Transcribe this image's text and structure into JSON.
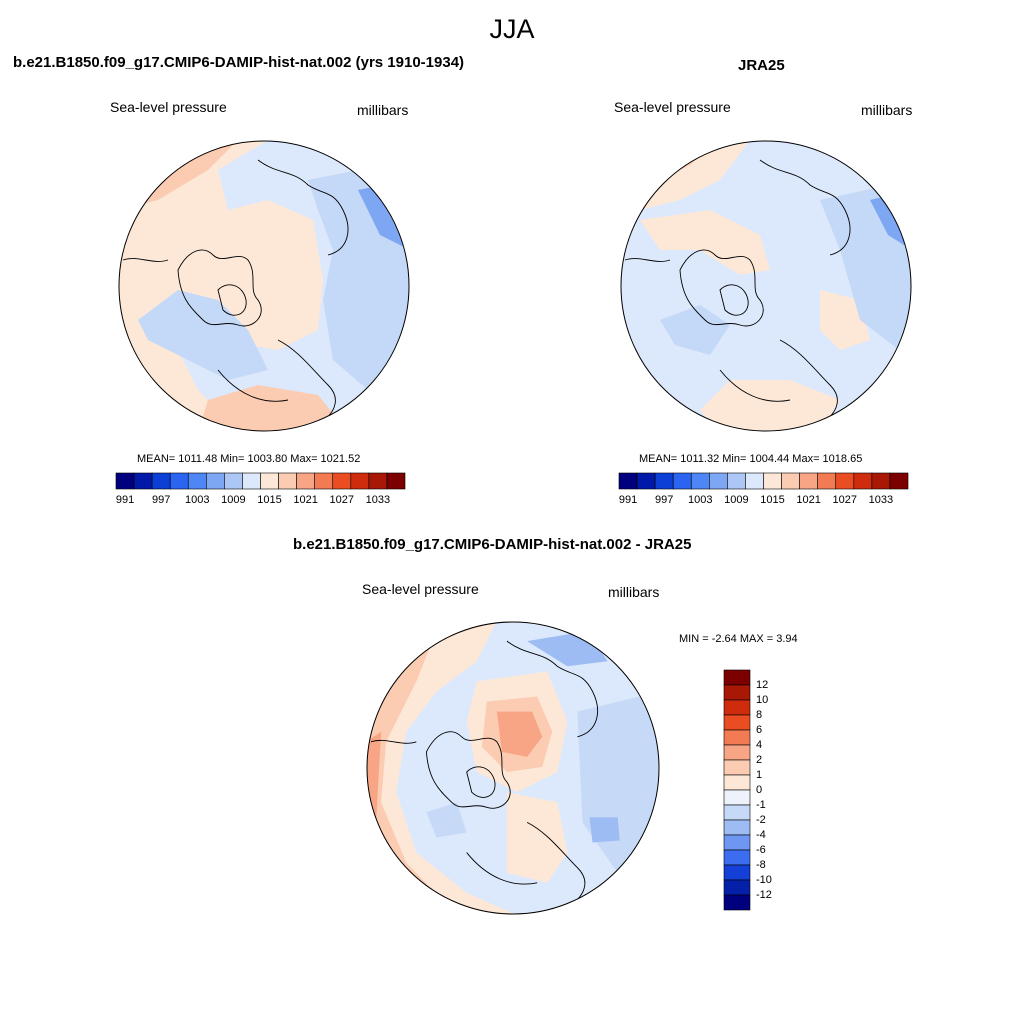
{
  "figure": {
    "title": "JJA"
  },
  "panels": [
    {
      "title": "b.e21.B1850.f09_g17.CMIP6-DAMIP-hist-nat.002 (yrs 1910-1934)",
      "left_label": "Sea-level pressure",
      "right_label": "millibars",
      "stats": "MEAN= 1011.48  Min= 1003.80  Max= 1021.52",
      "colorbar": {
        "colors": [
          "#00007f",
          "#0019a8",
          "#0b3fd6",
          "#2a64f0",
          "#4f86f5",
          "#7da6f3",
          "#acc7f5",
          "#dce8fb",
          "#fde8d8",
          "#fbcbb2",
          "#f7a585",
          "#f27b54",
          "#ea4d22",
          "#cf2c0d",
          "#a81805",
          "#7d0000"
        ],
        "tick_labels": [
          "991",
          "997",
          "1003",
          "1009",
          "1015",
          "1021",
          "1027",
          "1033"
        ]
      }
    },
    {
      "title": "JRA25",
      "left_label": "Sea-level pressure",
      "right_label": "millibars",
      "stats": "MEAN= 1011.32  Min= 1004.44  Max= 1018.65",
      "colorbar": {
        "colors": [
          "#00007f",
          "#0019a8",
          "#0b3fd6",
          "#2a64f0",
          "#4f86f5",
          "#7da6f3",
          "#acc7f5",
          "#dce8fb",
          "#fde8d8",
          "#fbcbb2",
          "#f7a585",
          "#f27b54",
          "#ea4d22",
          "#cf2c0d",
          "#a81805",
          "#7d0000"
        ],
        "tick_labels": [
          "991",
          "997",
          "1003",
          "1009",
          "1015",
          "1021",
          "1027",
          "1033"
        ]
      }
    },
    {
      "title": "b.e21.B1850.f09_g17.CMIP6-DAMIP-hist-nat.002 - JRA25",
      "left_label": "Sea-level pressure",
      "right_label": "millibars",
      "stats": "MIN =  -2.64 MAX =   3.94",
      "colorbar": {
        "colors": [
          "#7d0000",
          "#a81805",
          "#cf2c0d",
          "#ea4d22",
          "#f27b54",
          "#f7a585",
          "#fbcbb2",
          "#fde8d8",
          "#eef3fb",
          "#c6d9f6",
          "#9dbcf4",
          "#6d97f2",
          "#3c6df0",
          "#1540d8",
          "#0520a8",
          "#00007f"
        ],
        "tick_labels": [
          "12",
          "10",
          "8",
          "6",
          "4",
          "2",
          "1",
          "0",
          "-1",
          "-2",
          "-4",
          "-6",
          "-8",
          "-10",
          "-12"
        ]
      }
    }
  ]
}
